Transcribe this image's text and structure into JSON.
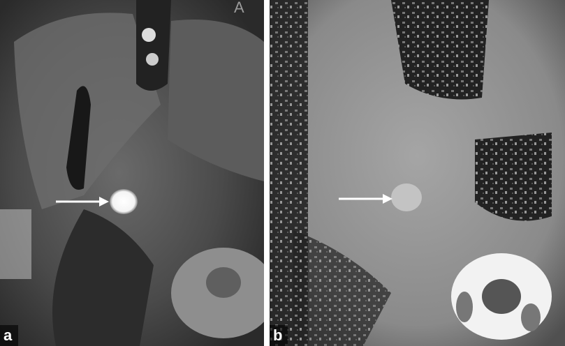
{
  "panels": [
    {
      "label": "a",
      "orientation_marker": "A"
    },
    {
      "label": "b"
    }
  ]
}
